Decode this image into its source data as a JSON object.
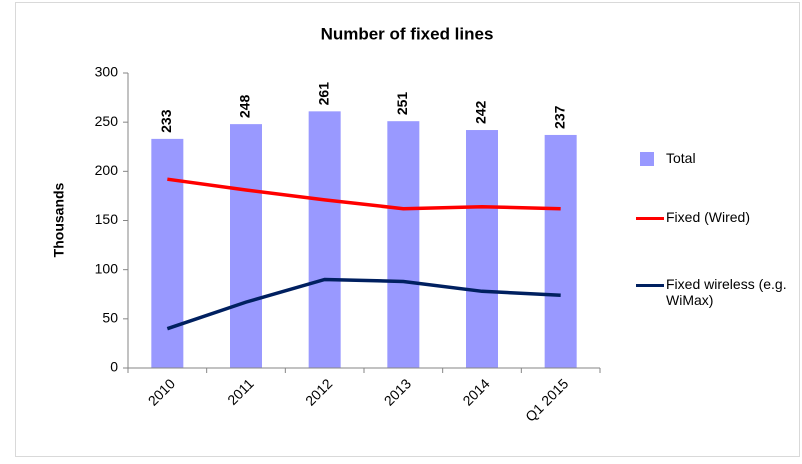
{
  "chart_data": {
    "type": "bar",
    "title": "Number of fixed lines",
    "y_label": "Thousands",
    "categories": [
      "2010",
      "2011",
      "2012",
      "2013",
      "2014",
      "Q1 2015"
    ],
    "series": [
      {
        "name": "Total",
        "type": "bar",
        "color": "#9999ff",
        "values": [
          233,
          248,
          261,
          251,
          242,
          237
        ]
      },
      {
        "name": "Fixed (Wired)",
        "type": "line",
        "color": "#ff0000",
        "values": [
          192,
          181,
          171,
          162,
          164,
          162
        ]
      },
      {
        "name": "Fixed wireless (e.g. WiMax)",
        "type": "line",
        "color": "#002060",
        "values": [
          40,
          67,
          90,
          88,
          78,
          74
        ]
      }
    ],
    "ylim": [
      0,
      300
    ],
    "yticks": [
      0,
      50,
      100,
      150,
      200,
      250,
      300
    ],
    "grid": false,
    "legend": "right"
  }
}
